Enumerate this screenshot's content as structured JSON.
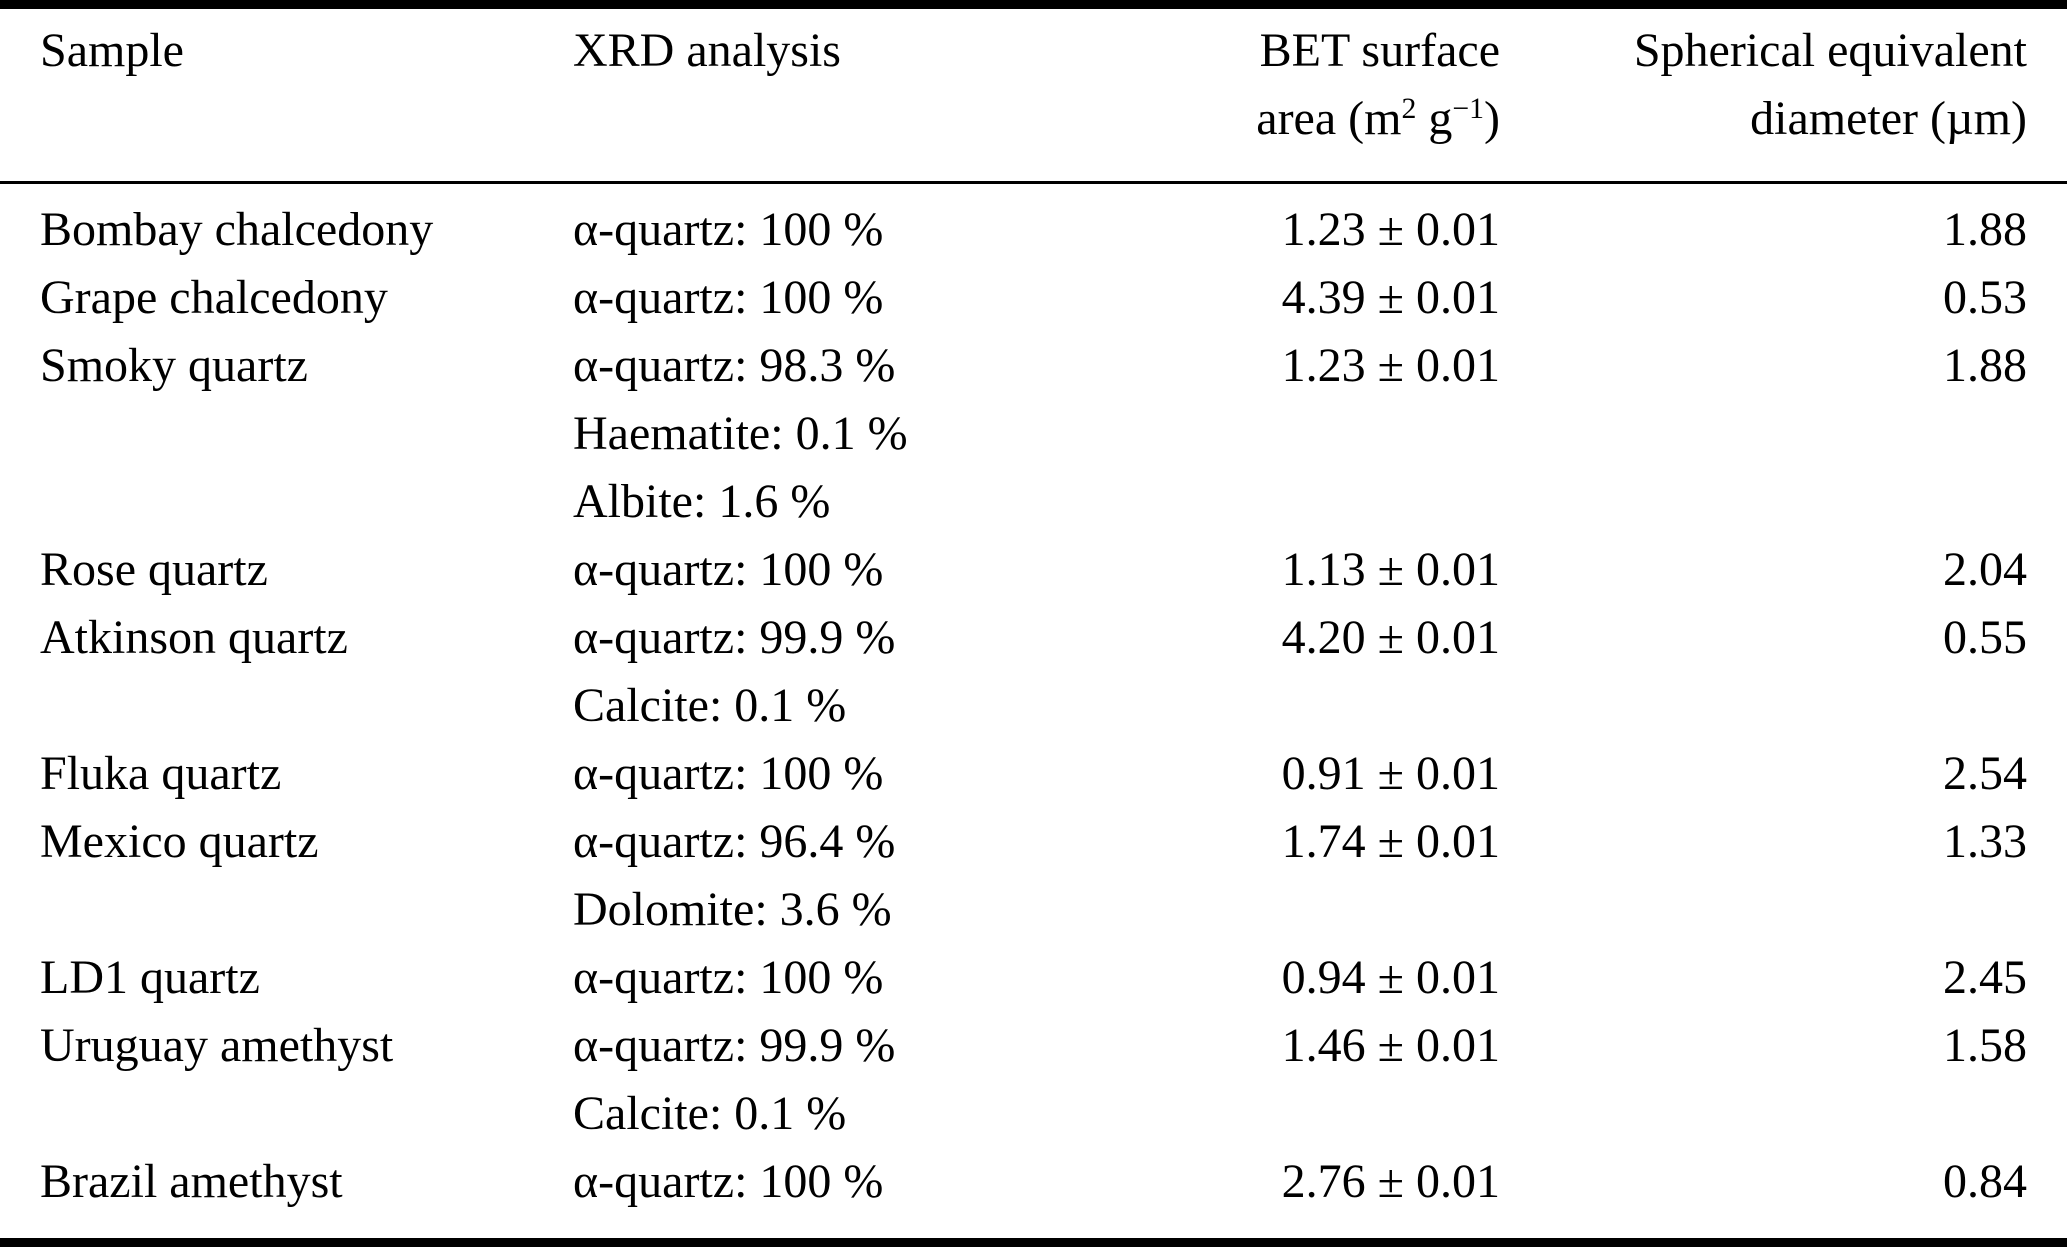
{
  "table": {
    "header": {
      "col1": "Sample",
      "col2": "XRD analysis",
      "col3_line1": "BET surface",
      "col3_unit_pre": "area (m",
      "col3_unit_sup1": "2",
      "col3_unit_mid": " g",
      "col3_unit_sup2": "−1",
      "col3_unit_post": ")",
      "col4_line1": "Spherical equivalent",
      "col4_line2": "diameter (µm)"
    },
    "rows": [
      {
        "sample": "Bombay chalcedony",
        "xrd": [
          "α-quartz: 100 %"
        ],
        "bet": "1.23 ± 0.01",
        "diameter": "1.88"
      },
      {
        "sample": "Grape chalcedony",
        "xrd": [
          "α-quartz: 100 %"
        ],
        "bet": "4.39 ± 0.01",
        "diameter": "0.53"
      },
      {
        "sample": "Smoky quartz",
        "xrd": [
          "α-quartz: 98.3 %",
          "Haematite: 0.1 %",
          "Albite: 1.6 %"
        ],
        "bet": "1.23 ± 0.01",
        "diameter": "1.88"
      },
      {
        "sample": "Rose quartz",
        "xrd": [
          "α-quartz: 100 %"
        ],
        "bet": "1.13 ± 0.01",
        "diameter": "2.04"
      },
      {
        "sample": "Atkinson quartz",
        "xrd": [
          "α-quartz: 99.9 %",
          "Calcite: 0.1 %"
        ],
        "bet": "4.20 ± 0.01",
        "diameter": "0.55"
      },
      {
        "sample": "Fluka quartz",
        "xrd": [
          "α-quartz: 100 %"
        ],
        "bet": "0.91 ± 0.01",
        "diameter": "2.54"
      },
      {
        "sample": "Mexico quartz",
        "xrd": [
          "α-quartz: 96.4 %",
          "Dolomite: 3.6 %"
        ],
        "bet": "1.74 ± 0.01",
        "diameter": "1.33"
      },
      {
        "sample": "LD1 quartz",
        "xrd": [
          "α-quartz: 100 %"
        ],
        "bet": "0.94 ± 0.01",
        "diameter": "2.45"
      },
      {
        "sample": "Uruguay amethyst",
        "xrd": [
          "α-quartz: 99.9 %",
          "Calcite: 0.1 %"
        ],
        "bet": "1.46 ± 0.01",
        "diameter": "1.58"
      },
      {
        "sample": "Brazil amethyst",
        "xrd": [
          "α-quartz: 100 %"
        ],
        "bet": "2.76 ± 0.01",
        "diameter": "0.84"
      }
    ]
  }
}
